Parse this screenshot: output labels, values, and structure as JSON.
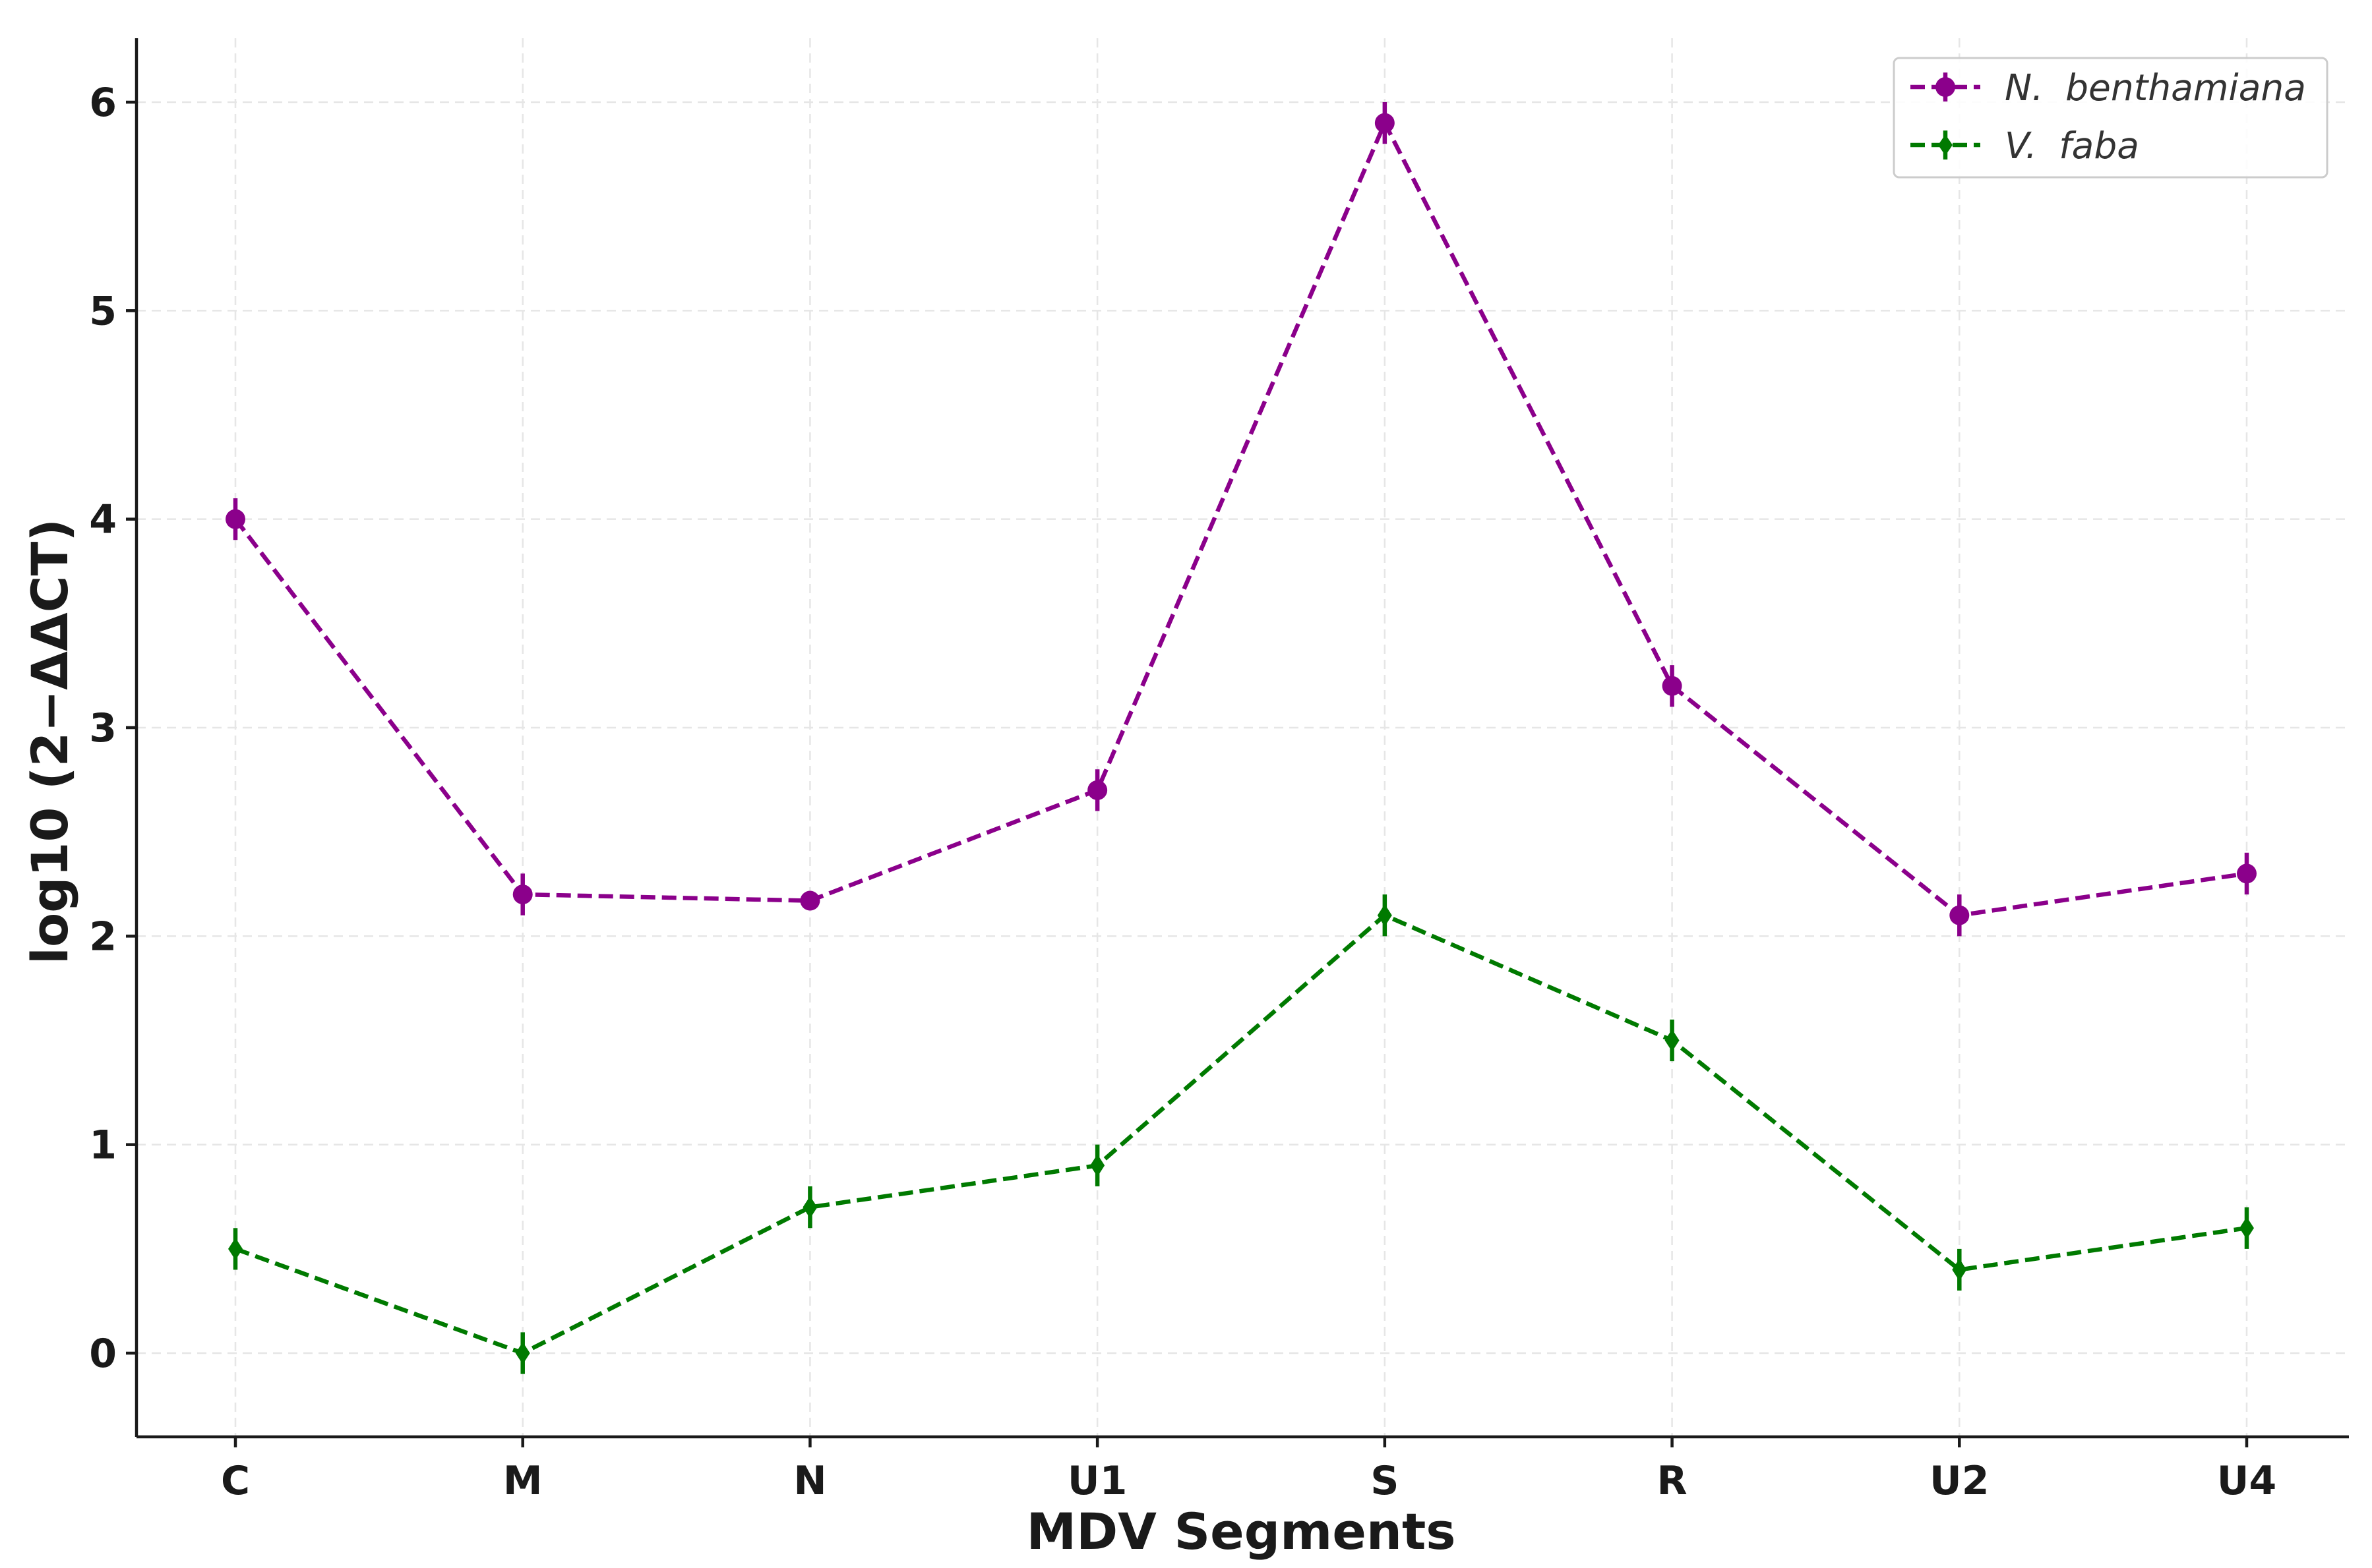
{
  "chart_data": {
    "type": "line",
    "title": "",
    "xlabel": "MDV Segments",
    "ylabel": "log10 (2−ΔΔCT)",
    "categories": [
      "C",
      "M",
      "N",
      "U1",
      "S",
      "R",
      "U2",
      "U4"
    ],
    "ylim": [
      -0.4,
      6.3
    ],
    "yticks": [
      0,
      1,
      2,
      3,
      4,
      5,
      6
    ],
    "yticklabels": [
      "0",
      "1",
      "2",
      "3",
      "4",
      "5",
      "6"
    ],
    "grid": true,
    "legend_position": "top-right",
    "series": [
      {
        "name": "N. benthamiana",
        "legend_prefix": "N.",
        "legend_suffix": "benthamiana",
        "color": "#8b008b",
        "marker": "circle",
        "linestyle": "dashed",
        "values": [
          4.0,
          2.2,
          2.17,
          2.7,
          5.9,
          3.2,
          2.1,
          2.3
        ],
        "errors": [
          0.1,
          0.1,
          0.04,
          0.1,
          0.1,
          0.1,
          0.1,
          0.1
        ]
      },
      {
        "name": "V. faba",
        "legend_prefix": "V.",
        "legend_suffix": "faba",
        "color": "#007a00",
        "marker": "diamond",
        "linestyle": "dashed",
        "values": [
          0.5,
          0.0,
          0.7,
          0.9,
          2.1,
          1.5,
          0.4,
          0.6
        ],
        "errors": [
          0.1,
          0.1,
          0.1,
          0.1,
          0.1,
          0.1,
          0.1,
          0.1
        ]
      }
    ]
  }
}
